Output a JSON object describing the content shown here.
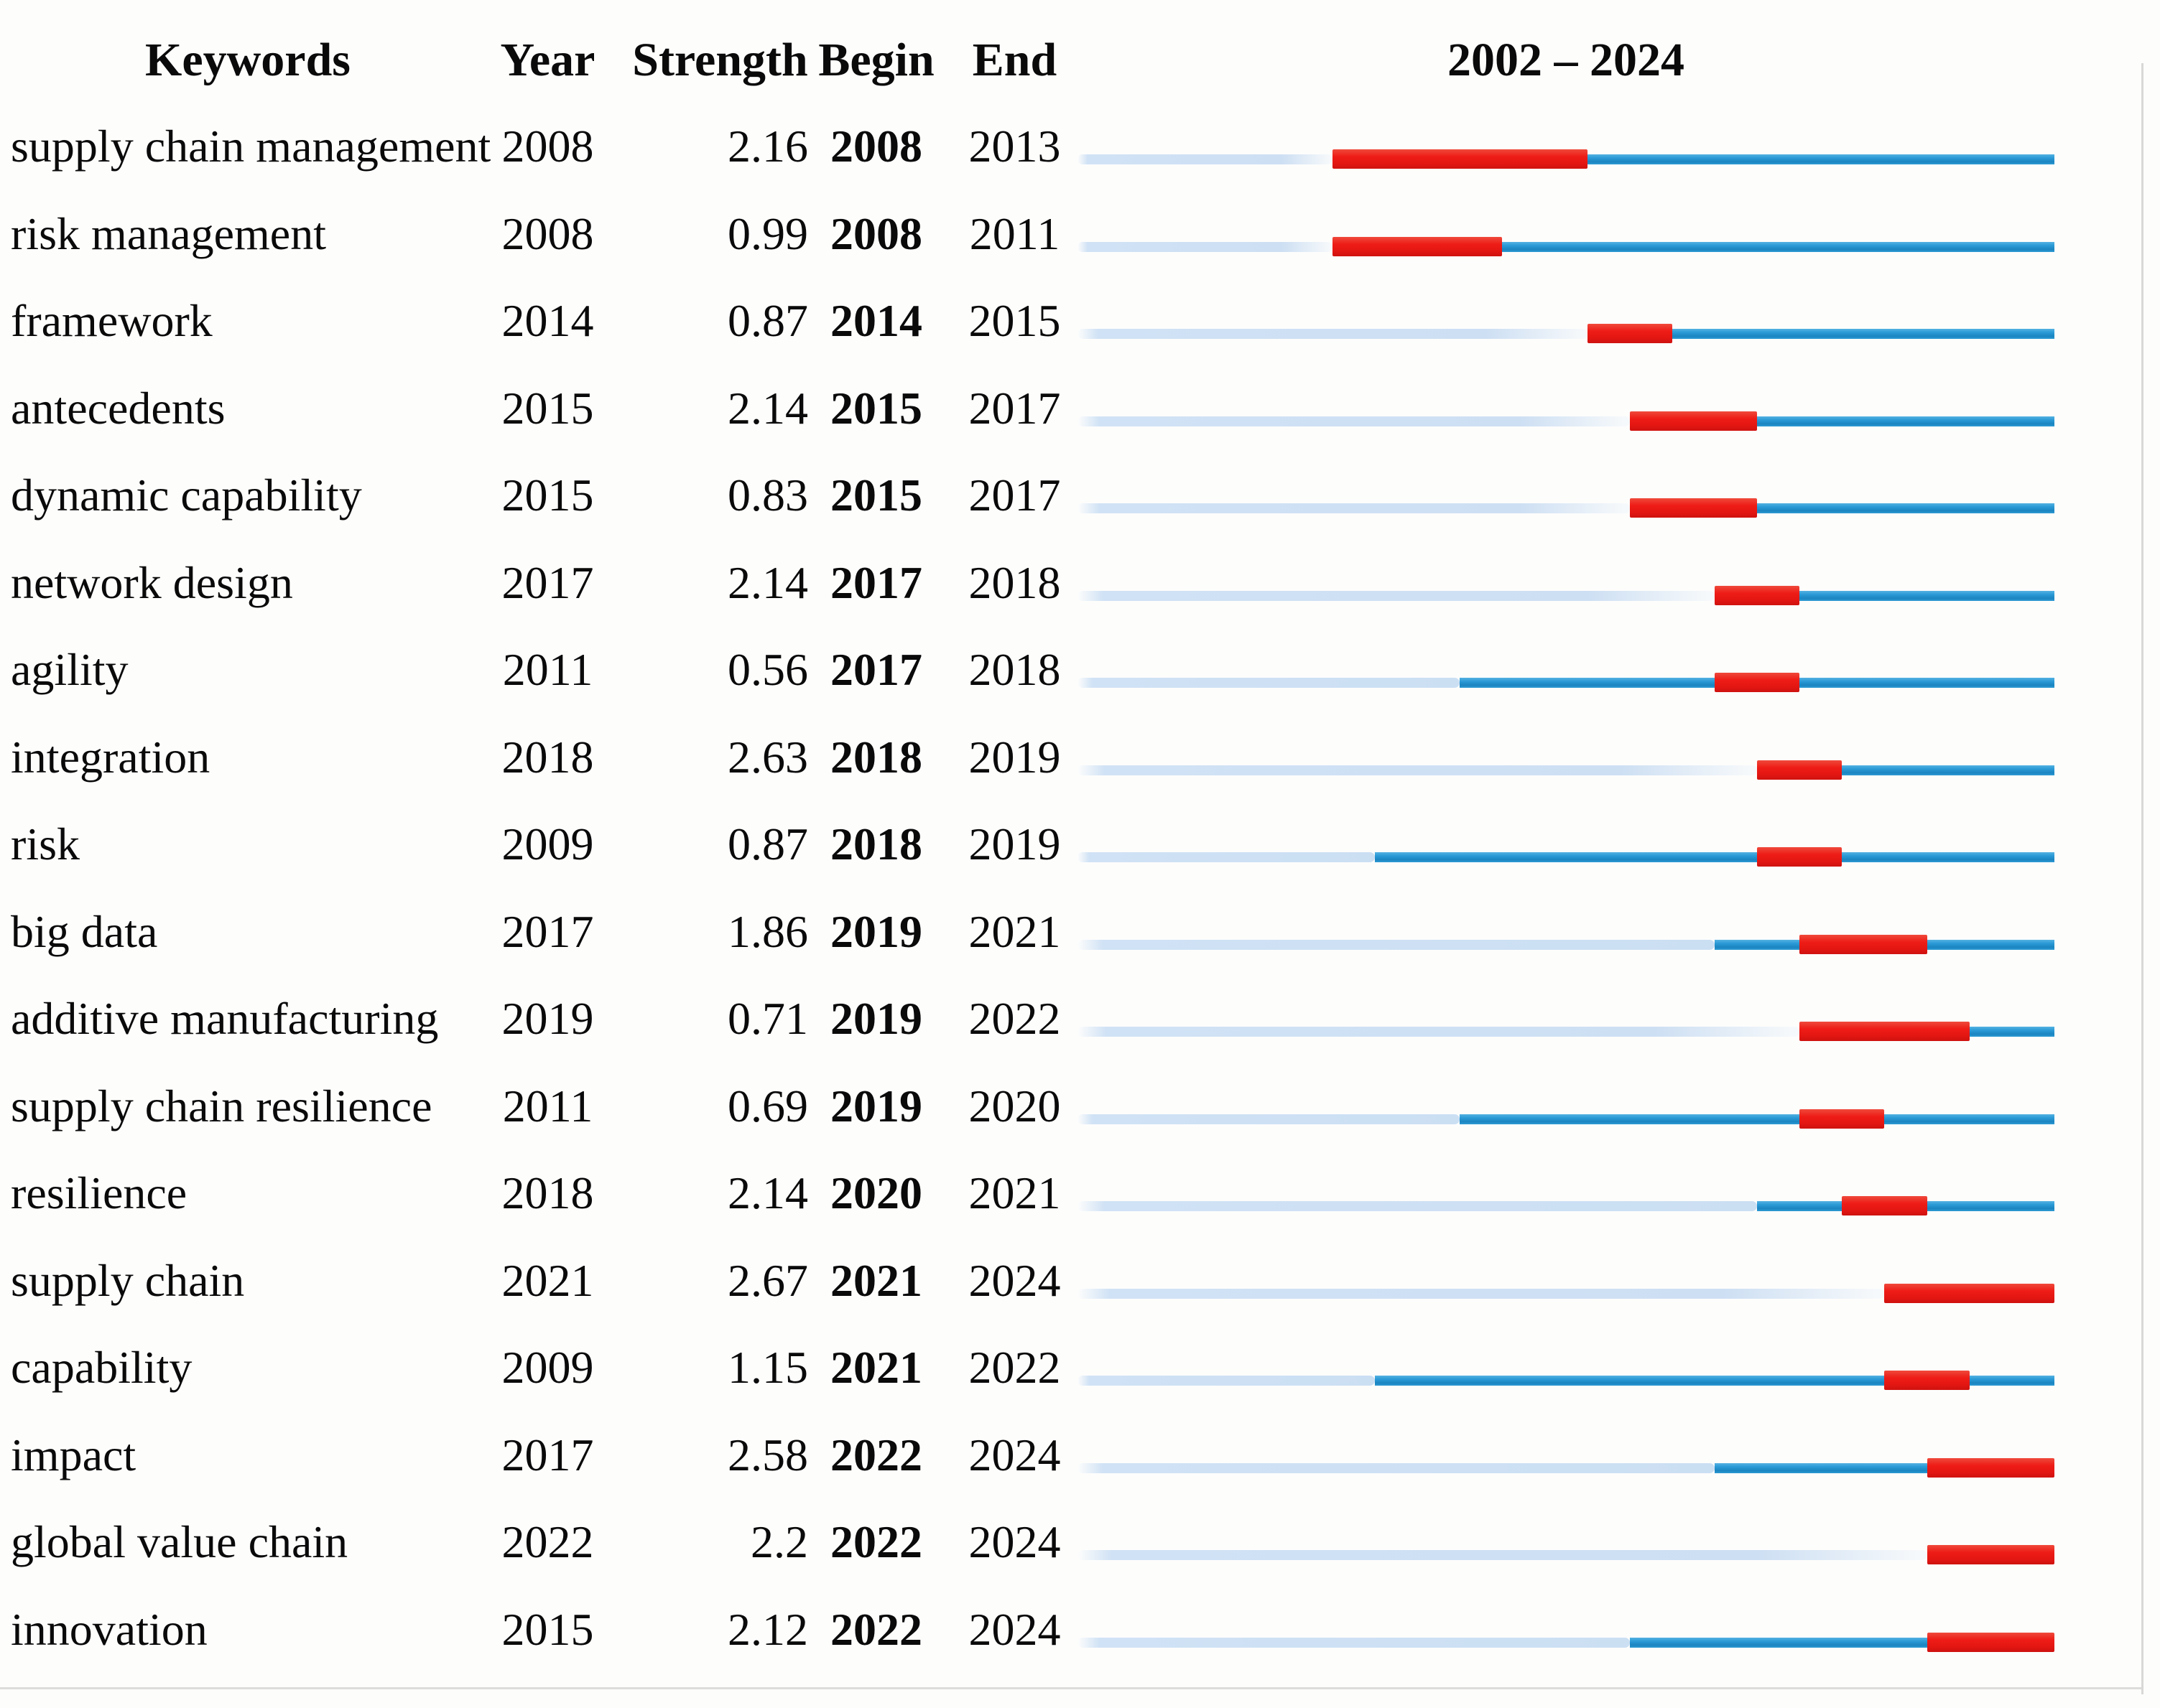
{
  "header": {
    "keywords": "Keywords",
    "year": "Year",
    "strength": "Strength",
    "begin": "Begin",
    "end": "End",
    "timeline_range": "2002 – 2024"
  },
  "chart_data": {
    "type": "table",
    "subtype": "citation-burst-timeline",
    "columns": [
      "Keywords",
      "Year",
      "Strength",
      "Begin",
      "End"
    ],
    "timeline": {
      "start": 2002,
      "end": 2024,
      "label": "2002 – 2024"
    },
    "colors": {
      "burst_red": "#ee1c16",
      "active_blue": "#2b9ad6",
      "pre_period_light_blue": "#cbdff3"
    },
    "rows": [
      {
        "keyword": "supply chain management",
        "year": 2008,
        "strength": "2.16",
        "begin": 2008,
        "end": 2013
      },
      {
        "keyword": "risk management",
        "year": 2008,
        "strength": "0.99",
        "begin": 2008,
        "end": 2011
      },
      {
        "keyword": "framework",
        "year": 2014,
        "strength": "0.87",
        "begin": 2014,
        "end": 2015
      },
      {
        "keyword": "antecedents",
        "year": 2015,
        "strength": "2.14",
        "begin": 2015,
        "end": 2017
      },
      {
        "keyword": "dynamic capability",
        "year": 2015,
        "strength": "0.83",
        "begin": 2015,
        "end": 2017
      },
      {
        "keyword": "network design",
        "year": 2017,
        "strength": "2.14",
        "begin": 2017,
        "end": 2018
      },
      {
        "keyword": "agility",
        "year": 2011,
        "strength": "0.56",
        "begin": 2017,
        "end": 2018
      },
      {
        "keyword": "integration",
        "year": 2018,
        "strength": "2.63",
        "begin": 2018,
        "end": 2019
      },
      {
        "keyword": "risk",
        "year": 2009,
        "strength": "0.87",
        "begin": 2018,
        "end": 2019
      },
      {
        "keyword": "big data",
        "year": 2017,
        "strength": "1.86",
        "begin": 2019,
        "end": 2021
      },
      {
        "keyword": "additive manufacturing",
        "year": 2019,
        "strength": "0.71",
        "begin": 2019,
        "end": 2022
      },
      {
        "keyword": "supply chain resilience",
        "year": 2011,
        "strength": "0.69",
        "begin": 2019,
        "end": 2020
      },
      {
        "keyword": "resilience",
        "year": 2018,
        "strength": "2.14",
        "begin": 2020,
        "end": 2021
      },
      {
        "keyword": "supply chain",
        "year": 2021,
        "strength": "2.67",
        "begin": 2021,
        "end": 2024
      },
      {
        "keyword": "capability",
        "year": 2009,
        "strength": "1.15",
        "begin": 2021,
        "end": 2022
      },
      {
        "keyword": "impact",
        "year": 2017,
        "strength": "2.58",
        "begin": 2022,
        "end": 2024
      },
      {
        "keyword": "global value chain",
        "year": 2022,
        "strength": "2.2",
        "begin": 2022,
        "end": 2024
      },
      {
        "keyword": "innovation",
        "year": 2015,
        "strength": "2.12",
        "begin": 2022,
        "end": 2024
      }
    ]
  }
}
